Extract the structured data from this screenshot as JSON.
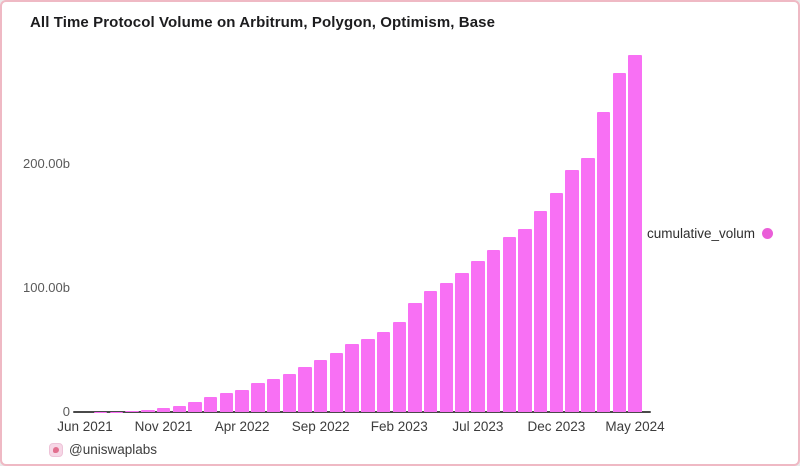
{
  "title": "All Time Protocol Volume on Arbitrum, Polygon, Optimism, Base",
  "legend": {
    "label": "cumulative_volum",
    "dot_color": "#ea5ed8"
  },
  "footer": {
    "handle": "@uniswaplabs",
    "logo": "uniswaplabs-logo-icon"
  },
  "colors": {
    "bar": "#f870f4",
    "frame_border": "#efb9c4",
    "axis_line": "#4a4a4a"
  },
  "chart_data": {
    "type": "bar",
    "title": "All Time Protocol Volume on Arbitrum, Polygon, Optimism, Base",
    "series_name": "cumulative_volum",
    "unit": "billions",
    "x": [
      "Jun 2021",
      "Jul 2021",
      "Aug 2021",
      "Sep 2021",
      "Oct 2021",
      "Nov 2021",
      "Dec 2021",
      "Jan 2022",
      "Feb 2022",
      "Mar 2022",
      "Apr 2022",
      "May 2022",
      "Jun 2022",
      "Jul 2022",
      "Aug 2022",
      "Sep 2022",
      "Oct 2022",
      "Nov 2022",
      "Dec 2022",
      "Jan 2023",
      "Feb 2023",
      "Mar 2023",
      "Apr 2023",
      "May 2023",
      "Jun 2023",
      "Jul 2023",
      "Aug 2023",
      "Sep 2023",
      "Oct 2023",
      "Nov 2023",
      "Dec 2023",
      "Jan 2024",
      "Feb 2024",
      "Mar 2024",
      "Apr 2024",
      "May 2024"
    ],
    "values": [
      0.05,
      0.1,
      0.3,
      0.6,
      1.8,
      3.3,
      5.0,
      8.1,
      12.5,
      15.6,
      17.8,
      23.4,
      26.9,
      31.0,
      36.0,
      41.7,
      47.8,
      55.0,
      58.6,
      64.5,
      72.6,
      88.2,
      97.5,
      104.0,
      112.3,
      121.8,
      130.4,
      141.5,
      147.5,
      162.0,
      177.0,
      195.0,
      205.0,
      242.0,
      273.0,
      288.0
    ],
    "x_tick_labels": [
      "Jun 2021",
      "Nov 2021",
      "Apr 2022",
      "Sep 2022",
      "Feb 2023",
      "Jul 2023",
      "Dec 2023",
      "May 2024"
    ],
    "y_ticks": [
      {
        "label": "0",
        "value": 0
      },
      {
        "label": "100.00b",
        "value": 100
      },
      {
        "label": "200.00b",
        "value": 200
      }
    ],
    "ylim": [
      0,
      295
    ],
    "grid": false,
    "legend_position": "right",
    "bar_color": "#f870f4"
  }
}
